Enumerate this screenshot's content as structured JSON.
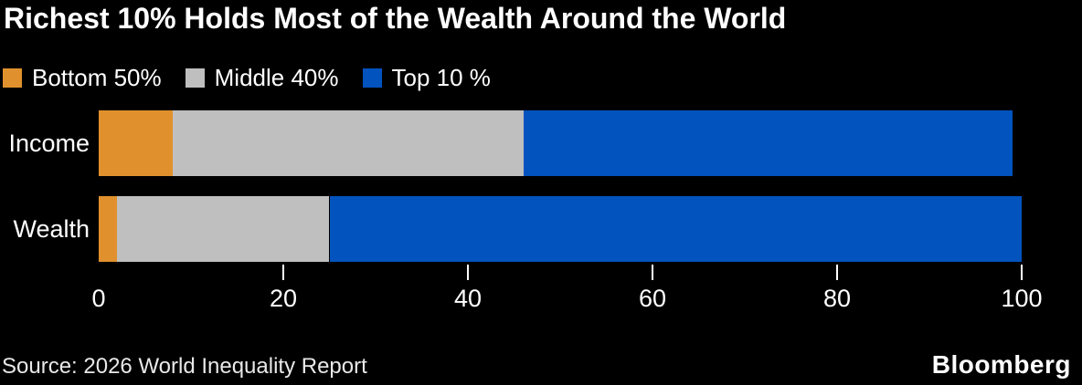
{
  "chart_data": {
    "type": "bar",
    "orientation": "horizontal",
    "stacked": true,
    "title": "Richest 10% Holds Most of the Wealth Around the World",
    "categories": [
      "Income",
      "Wealth"
    ],
    "series": [
      {
        "name": "Bottom 50%",
        "color": "#E0912D",
        "values": [
          8,
          2
        ]
      },
      {
        "name": "Middle 40%",
        "color": "#BFBFBF",
        "values": [
          38,
          23
        ]
      },
      {
        "name": "Top 10 %",
        "color": "#0253BE",
        "values": [
          53,
          75
        ]
      }
    ],
    "xlim": [
      0,
      100
    ],
    "xticks": [
      0,
      20,
      40,
      60,
      80,
      100
    ],
    "grid": false,
    "legend_position": "top-left",
    "background": "#000000",
    "text_color": "#FFFFFF"
  },
  "footer": {
    "source": "Source: 2026 World Inequality Report",
    "brand": "Bloomberg"
  }
}
